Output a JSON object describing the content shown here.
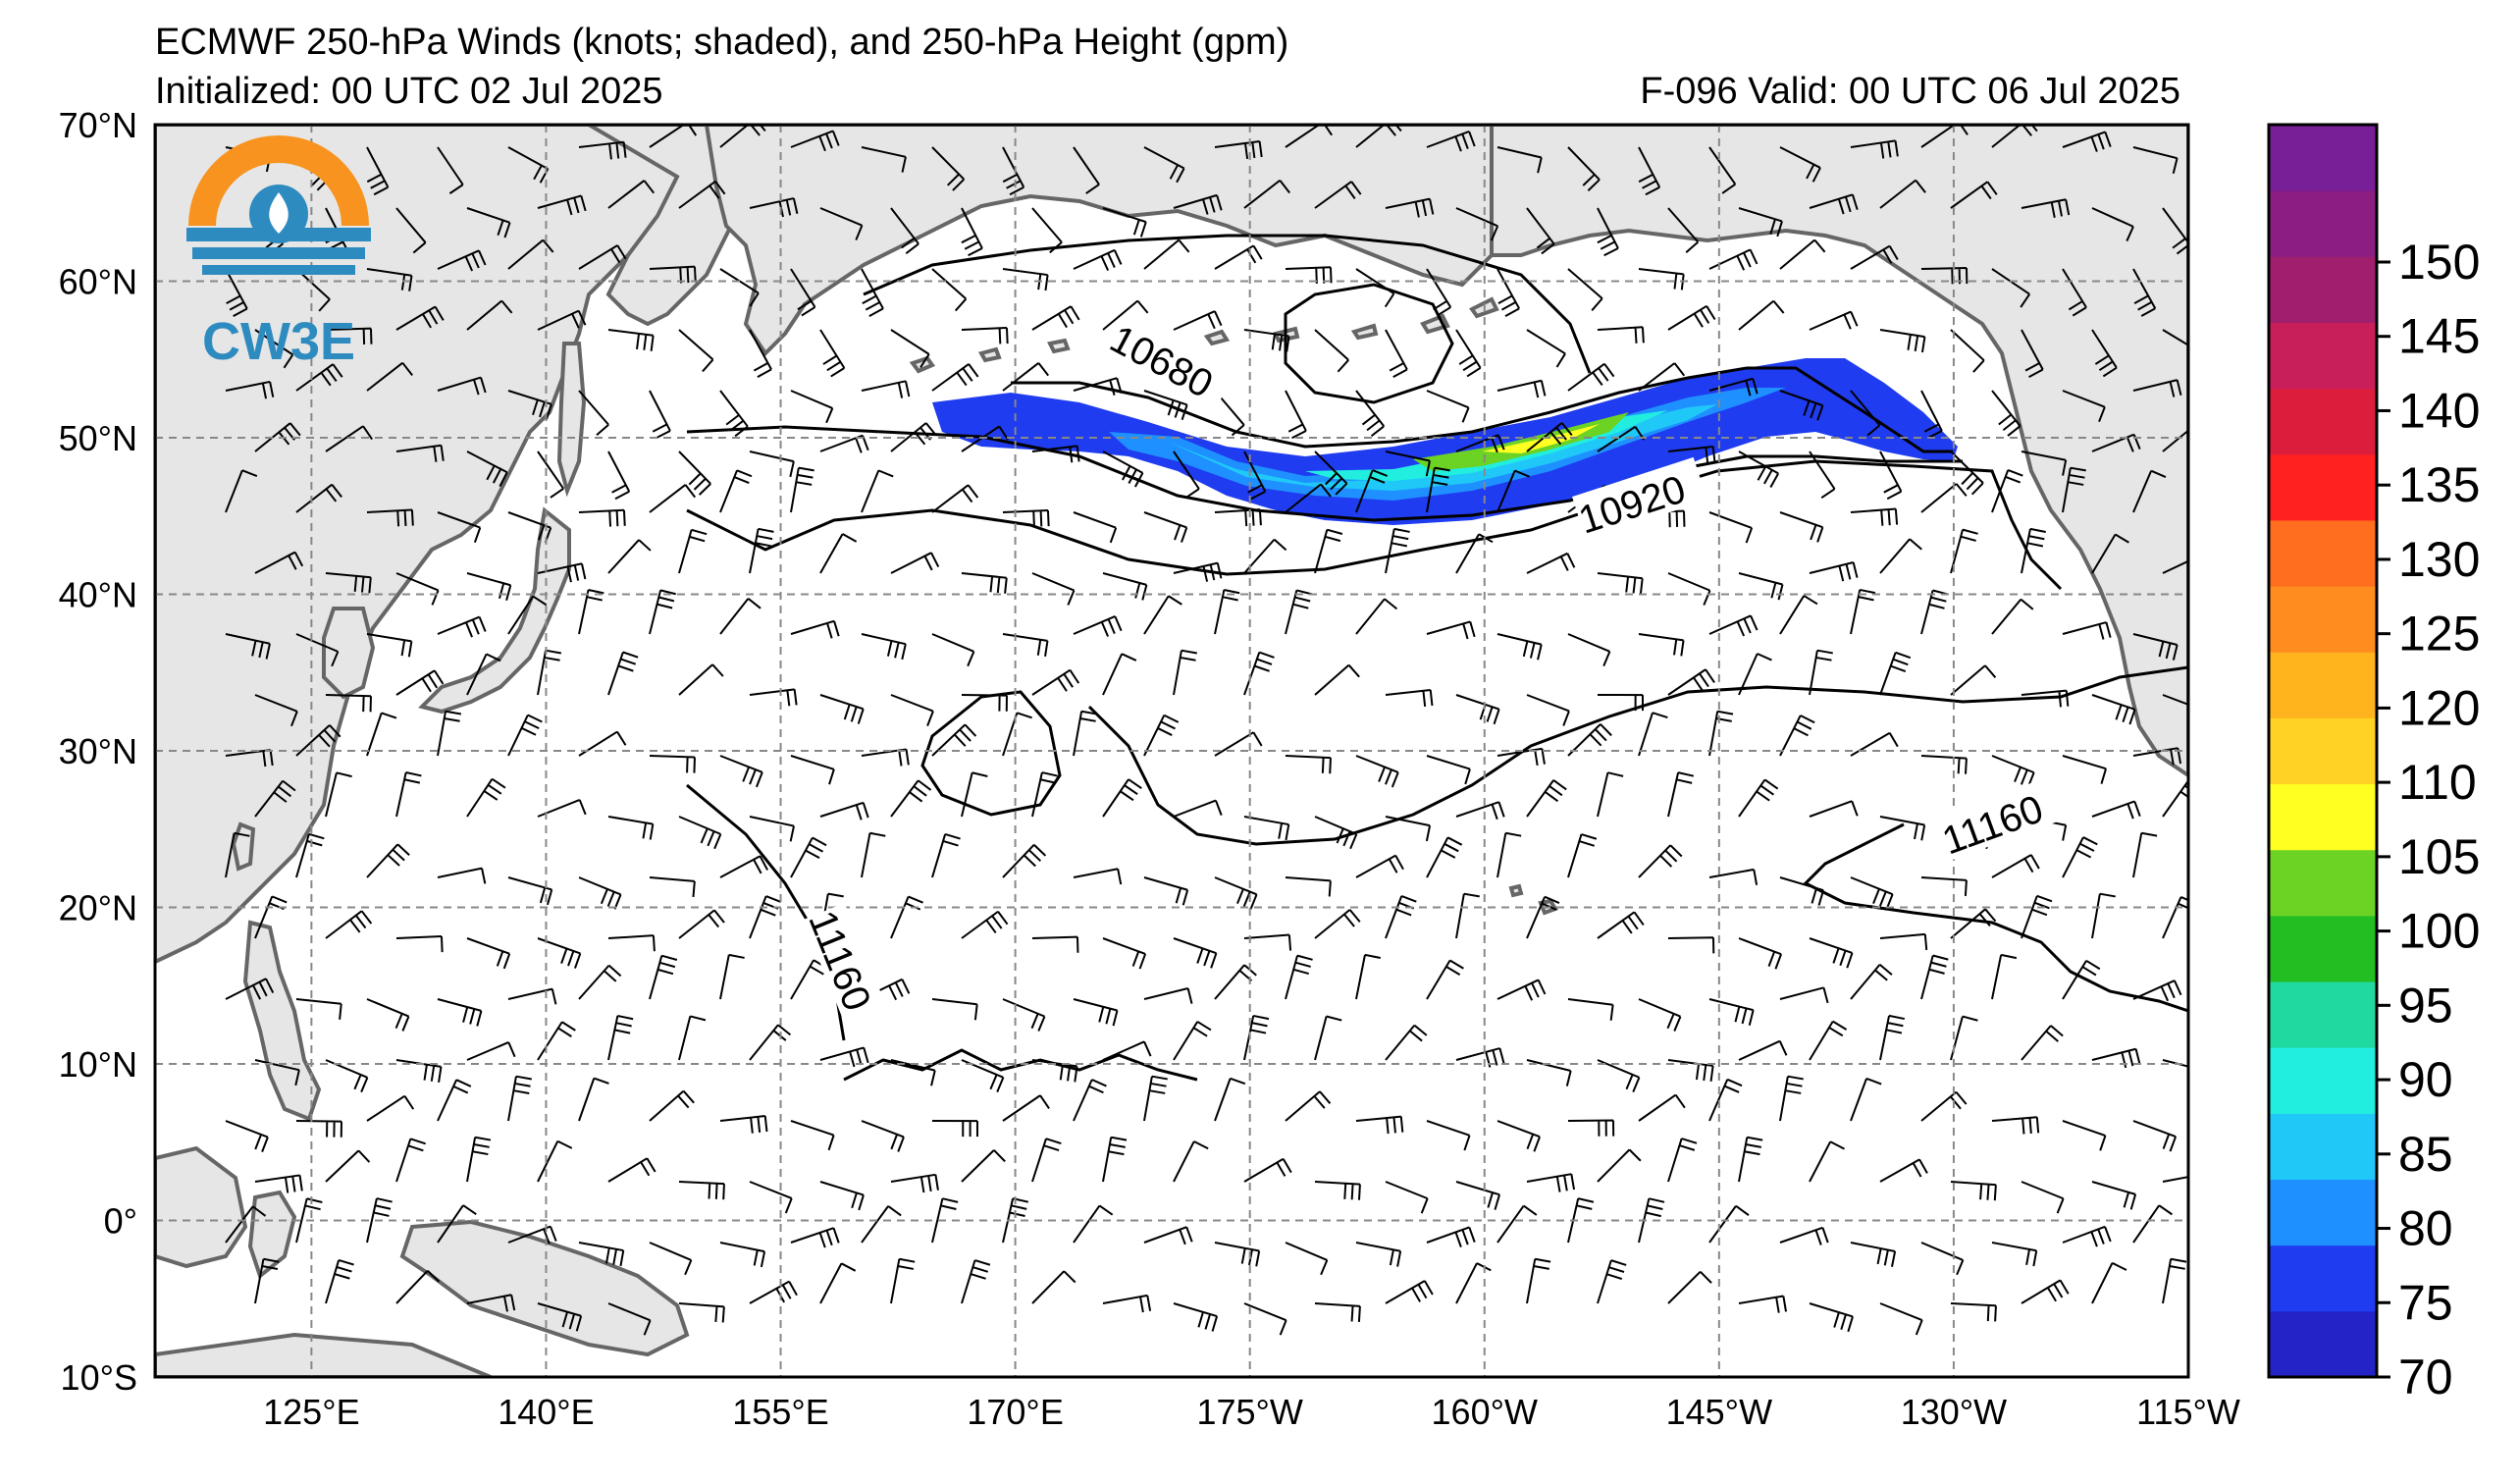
{
  "header": {
    "title": "ECMWF 250-hPa Winds (knots; shaded), and 250-hPa Height (gpm)",
    "initialized": "Initialized: 00 UTC 02 Jul 2025",
    "valid": "F-096  Valid: 00 UTC 06 Jul 2025"
  },
  "logo": {
    "text": "CW3E",
    "colors": {
      "orange": "#f7931e",
      "blue": "#2e8bc0"
    }
  },
  "map": {
    "lon_range": [
      115,
      245
    ],
    "lat_range": [
      -10,
      70
    ],
    "lat_labels": [
      "70°N",
      "60°N",
      "50°N",
      "40°N",
      "30°N",
      "20°N",
      "10°N",
      "0°",
      "10°S"
    ],
    "lon_labels": [
      "125°E",
      "140°E",
      "155°E",
      "170°E",
      "175°W",
      "160°W",
      "145°W",
      "130°W",
      "115°W"
    ],
    "land_color": "#e6e6e6",
    "coast_color": "#666666"
  },
  "contours": [
    {
      "value": 10680,
      "label": "10680"
    },
    {
      "value": 10920,
      "label": "10920"
    },
    {
      "value": 11160,
      "label": "11160"
    },
    {
      "value": 11160,
      "label": "11160"
    }
  ],
  "colorbar": {
    "label_values": [
      "70",
      "75",
      "80",
      "85",
      "90",
      "95",
      "100",
      "105",
      "110",
      "120",
      "125",
      "130",
      "135",
      "140",
      "145",
      "150"
    ],
    "colors": [
      "#2323c8",
      "#1f3cf0",
      "#1e90ff",
      "#20c8f8",
      "#22eee0",
      "#20d9a0",
      "#22be22",
      "#6cd224",
      "#ffff22",
      "#ffd224",
      "#ffb41e",
      "#ff8c1e",
      "#ff6e1e",
      "#ff2020",
      "#dc1e3c",
      "#c81e5a",
      "#a01e6e",
      "#8c1e82",
      "#781e96"
    ]
  }
}
